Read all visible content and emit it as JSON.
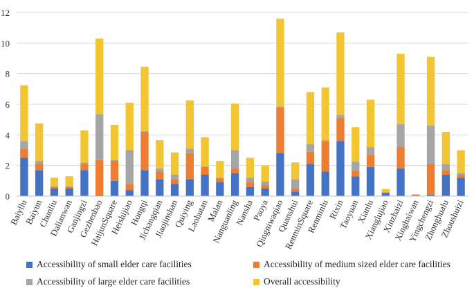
{
  "chart_data": {
    "type": "bar",
    "stacked": true,
    "title": "",
    "xlabel": "",
    "ylabel": "",
    "ylim": [
      0,
      12
    ],
    "yticks": [
      0,
      2,
      4,
      6,
      8,
      10,
      12
    ],
    "grid": true,
    "legend_position": "bottom",
    "categories": [
      "Baiyllu",
      "Baiyun",
      "Chunliu",
      "Dalianwan",
      "Ganjingzi",
      "Gezhenbao",
      "HaijunSquare",
      "Heishijiao",
      "Hongqi",
      "Jichangqian",
      "Jiaojinshan",
      "Quiying",
      "Laohutan",
      "Malan",
      "Nanguanling",
      "Nansha",
      "Paoya",
      "Qingniwaqiao",
      "Quanshui",
      "RenminSquare",
      "Renminlu",
      "Rixin",
      "Taoyuan",
      "Xianlu",
      "Xianglujiao",
      "Xinzhaizi",
      "Xinghaiwan",
      "Yingchengzi",
      "Zhonghualu",
      "Zhoushuizi"
    ],
    "series": [
      {
        "name": "Accessibility of small elder care facilities",
        "color": "#4472c4",
        "values": [
          2.5,
          1.7,
          0.5,
          0.5,
          1.7,
          0.05,
          1.0,
          0.4,
          1.7,
          1.1,
          0.8,
          1.1,
          1.4,
          0.9,
          1.5,
          0.6,
          0.5,
          2.8,
          0.3,
          2.1,
          1.6,
          3.6,
          1.3,
          1.9,
          0.2,
          1.8,
          0.05,
          0.1,
          1.4,
          1.2
        ]
      },
      {
        "name": "Accessibility of medium sized elder care facilities",
        "color": "#ed7d31",
        "values": [
          0.6,
          0.4,
          0.1,
          0.1,
          0.4,
          2.3,
          1.3,
          0.4,
          2.5,
          0.5,
          0.3,
          1.7,
          0.5,
          0.25,
          0.3,
          0.3,
          0.2,
          3.0,
          0.2,
          0.8,
          2.0,
          1.5,
          0.35,
          0.8,
          0.05,
          1.4,
          0.02,
          2.0,
          0.3,
          0.2
        ]
      },
      {
        "name": "Accessibility of large elder care facilities",
        "color": "#a5a5a5",
        "values": [
          0.5,
          0.2,
          0.05,
          0.05,
          0.1,
          3.0,
          0.05,
          2.2,
          0.05,
          0.2,
          0.3,
          0.3,
          0.05,
          0.05,
          1.2,
          0.3,
          0.25,
          0.05,
          0.6,
          0.5,
          0.05,
          0.2,
          0.6,
          0.5,
          0.01,
          1.5,
          0.01,
          2.5,
          0.4,
          0.1
        ]
      },
      {
        "name": "Overall accessibility",
        "color": "#f4c533",
        "values": [
          3.65,
          2.45,
          0.55,
          0.65,
          2.1,
          4.95,
          2.3,
          3.1,
          4.2,
          1.85,
          1.45,
          3.15,
          1.9,
          1.1,
          3.05,
          1.3,
          1.05,
          5.75,
          1.1,
          3.4,
          3.45,
          5.4,
          2.25,
          3.1,
          0.2,
          4.6,
          0.05,
          4.5,
          2.1,
          1.5
        ]
      }
    ]
  }
}
